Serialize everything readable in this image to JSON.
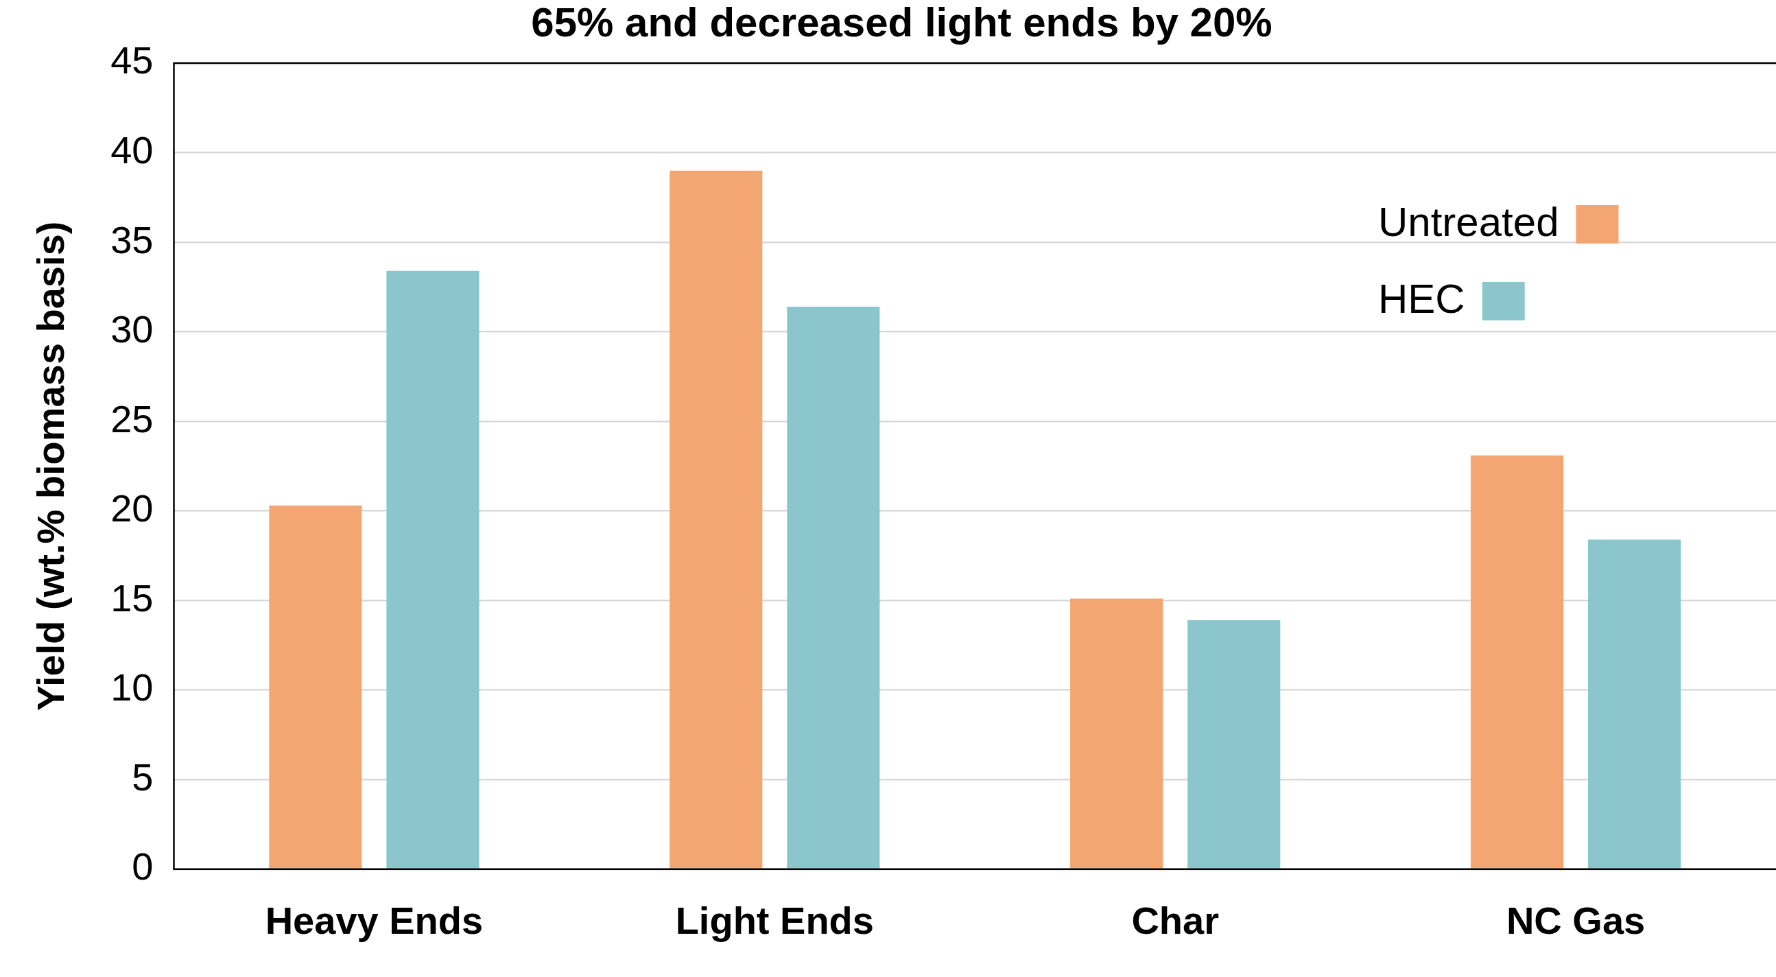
{
  "chart_data": {
    "type": "bar",
    "title": "65% and decreased light ends by 20%",
    "ylabel": "Yield (wt.% biomass basis)",
    "categories": [
      "Heavy Ends",
      "Light Ends",
      "Char",
      "NC Gas"
    ],
    "series": [
      {
        "name": "Untreated",
        "color": "#f3a672",
        "values": [
          20.3,
          39.0,
          15.1,
          23.1
        ]
      },
      {
        "name": "HEC",
        "color": "#8bc6cd",
        "values": [
          33.4,
          31.4,
          13.9,
          18.4
        ]
      }
    ],
    "ylim": [
      0,
      45
    ],
    "yticks": [
      0,
      5,
      10,
      15,
      20,
      25,
      30,
      35,
      40,
      45
    ],
    "grid": "y",
    "legend": "top right"
  }
}
